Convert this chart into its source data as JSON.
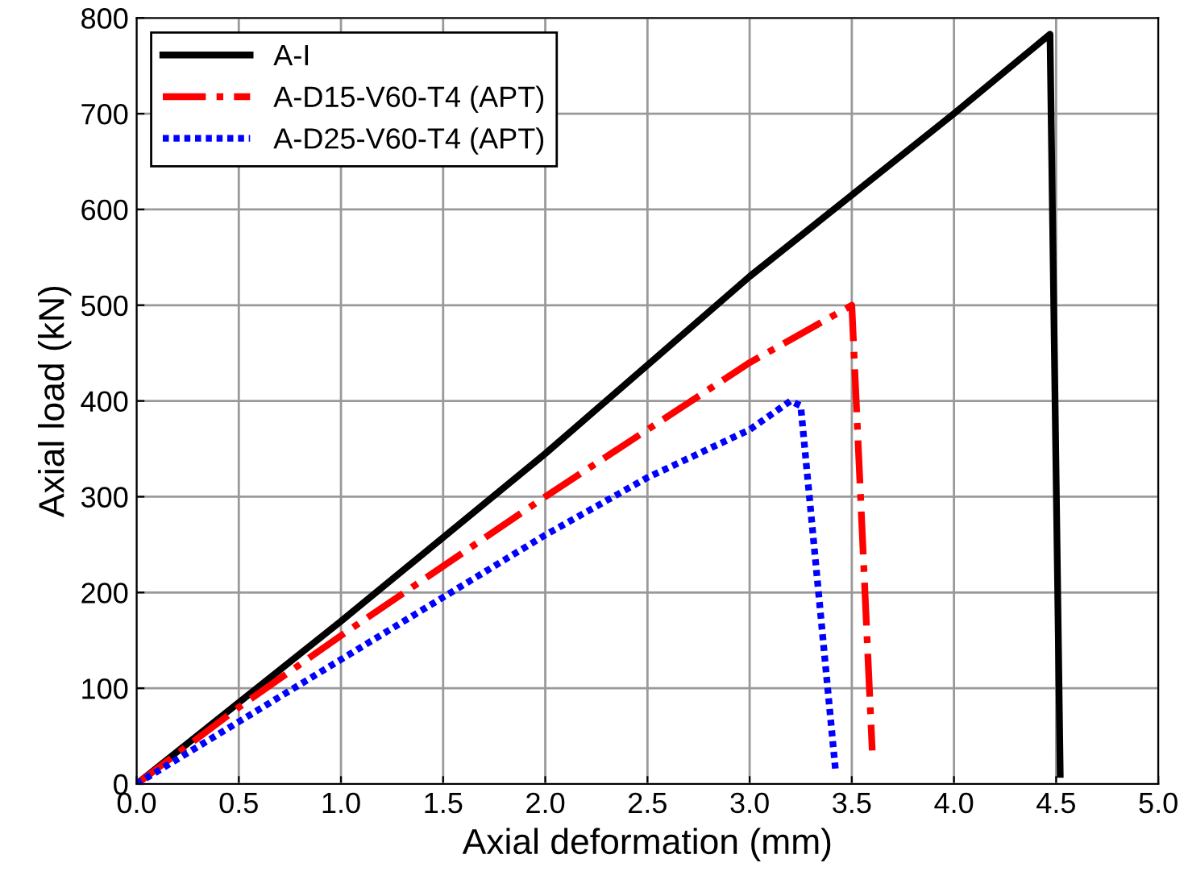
{
  "chart_data": {
    "type": "line",
    "xlabel": "Axial deformation (mm)",
    "ylabel": "Axial load (kN)",
    "xlim": [
      0,
      5
    ],
    "ylim": [
      0,
      800
    ],
    "xticks": [
      {
        "value": 0,
        "label": "0.0"
      },
      0.5,
      {
        "value": 1,
        "label": "1.0"
      },
      1.5,
      {
        "value": 2,
        "label": "2.0"
      },
      2.5,
      {
        "value": 3,
        "label": "3.0"
      },
      3.5,
      {
        "value": 4,
        "label": "4.0"
      },
      4.5,
      {
        "value": 5,
        "label": "5.0"
      }
    ],
    "yticks": [
      0,
      100,
      200,
      300,
      400,
      500,
      600,
      700,
      800
    ],
    "grid": true,
    "legend": "top left",
    "series": [
      {
        "name": "A-I",
        "color": "#000000",
        "line_style": "solid",
        "x": [
          0,
          1,
          2,
          3,
          4,
          4.47,
          4.52
        ],
        "values": [
          0,
          170,
          345,
          530,
          700,
          783,
          10
        ]
      },
      {
        "name": "A-D15-V60-T4 (APT)",
        "color": "#ff0000",
        "line_style": "dashdot",
        "x": [
          0,
          0.5,
          1,
          2,
          3,
          3.5,
          3.6
        ],
        "values": [
          0,
          80,
          155,
          300,
          440,
          500,
          35
        ]
      },
      {
        "name": "A-D25-V60-T4 (APT)",
        "color": "#0000ff",
        "line_style": "dotted",
        "x": [
          0,
          0.5,
          1,
          1.5,
          2,
          2.5,
          3,
          3.2,
          3.25,
          3.42
        ],
        "values": [
          0,
          65,
          130,
          195,
          260,
          320,
          370,
          400,
          395,
          15
        ]
      }
    ]
  }
}
